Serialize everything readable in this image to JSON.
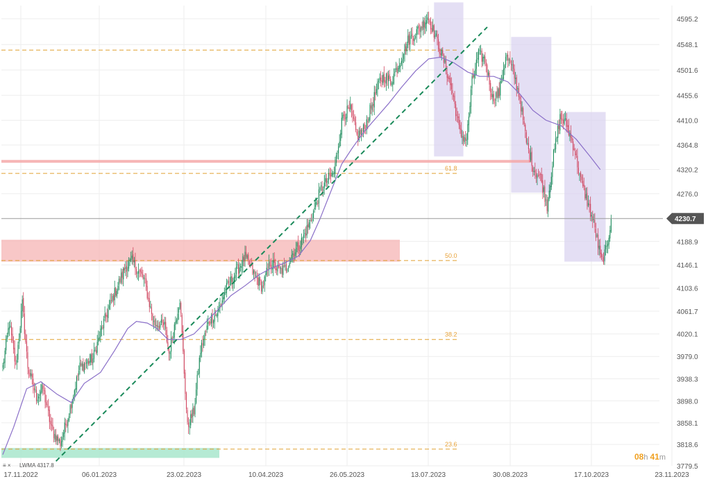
{
  "colors": {
    "up": "#1a8a5a",
    "down": "#d0455f",
    "grid": "#eeeeee",
    "fib": "#e0a030",
    "lwma": "#8a6fc8",
    "trend": "#1a8a5a",
    "resistance_zone": "#f5b4b4",
    "support_zone": "#a8e6cc",
    "highlight_box": "#d8d2f0",
    "red_hline": "#f5a8a8",
    "current_line": "#999999",
    "price_tag_bg": "#555555"
  },
  "chart_data": {
    "type": "candlestick",
    "title": "",
    "xlabel": "",
    "ylabel": "",
    "x_ticks": [
      "17.11.2022",
      "06.01.2023",
      "23.02.2023",
      "10.04.2023",
      "26.05.2023",
      "13.07.2023",
      "30.08.2023",
      "17.10.2023",
      "23.11.2023"
    ],
    "y_ticks": [
      "4595.2",
      "4548.1",
      "4501.6",
      "4455.6",
      "4410.0",
      "4364.8",
      "4320.2",
      "4276.0",
      "4188.9",
      "4146.1",
      "4103.6",
      "4061.7",
      "4020.1",
      "3979.0",
      "3938.3",
      "3898.0",
      "3858.1",
      "3818.6",
      "3779.5"
    ],
    "ylim": [
      3779.5,
      4620
    ],
    "current_price": "4230.7",
    "fib_levels": [
      {
        "label": "61.8",
        "value": 4313
      },
      {
        "label": "50.0",
        "value": 4154
      },
      {
        "label": "38.2",
        "value": 4010
      },
      {
        "label": "23.6",
        "value": 3810
      }
    ],
    "fib_top_line": 4538,
    "resistance_zone": {
      "low": 4152,
      "high": 4192
    },
    "support_zone": {
      "low": 3794,
      "high": 3812
    },
    "red_line": 4335,
    "lwma_label": "LWMA 4317.8",
    "countdown": {
      "hours": "08",
      "h_unit": "h",
      "minutes": "41",
      "m_unit": "m"
    },
    "legend": "none",
    "grid": true,
    "close_anchors": [
      [
        0,
        3960
      ],
      [
        6,
        4040
      ],
      [
        12,
        3960
      ],
      [
        18,
        4075
      ],
      [
        23,
        3960
      ],
      [
        31,
        3905
      ],
      [
        37,
        3920
      ],
      [
        45,
        3845
      ],
      [
        53,
        3820
      ],
      [
        60,
        3870
      ],
      [
        71,
        3960
      ],
      [
        83,
        3975
      ],
      [
        91,
        4030
      ],
      [
        101,
        4085
      ],
      [
        113,
        4143
      ],
      [
        119,
        4152
      ],
      [
        130,
        4120
      ],
      [
        139,
        4040
      ],
      [
        149,
        4035
      ],
      [
        153,
        3985
      ],
      [
        163,
        4085
      ],
      [
        170,
        3850
      ],
      [
        176,
        3880
      ],
      [
        182,
        3990
      ],
      [
        190,
        4045
      ],
      [
        198,
        4060
      ],
      [
        205,
        4100
      ],
      [
        214,
        4130
      ],
      [
        223,
        4160
      ],
      [
        231,
        4130
      ],
      [
        239,
        4105
      ],
      [
        246,
        4150
      ],
      [
        255,
        4135
      ],
      [
        261,
        4140
      ],
      [
        266,
        4165
      ],
      [
        274,
        4185
      ],
      [
        283,
        4225
      ],
      [
        293,
        4285
      ],
      [
        305,
        4315
      ],
      [
        313,
        4420
      ],
      [
        320,
        4430
      ],
      [
        326,
        4380
      ],
      [
        333,
        4395
      ],
      [
        340,
        4440
      ],
      [
        347,
        4482
      ],
      [
        351,
        4490
      ],
      [
        357,
        4480
      ],
      [
        364,
        4510
      ],
      [
        373,
        4555
      ],
      [
        385,
        4580
      ],
      [
        391,
        4600
      ],
      [
        397,
        4570
      ],
      [
        406,
        4518
      ],
      [
        414,
        4460
      ],
      [
        421,
        4385
      ],
      [
        427,
        4375
      ],
      [
        432,
        4480
      ],
      [
        438,
        4530
      ],
      [
        444,
        4520
      ],
      [
        451,
        4450
      ],
      [
        457,
        4460
      ],
      [
        463,
        4528
      ],
      [
        470,
        4498
      ],
      [
        476,
        4450
      ],
      [
        482,
        4370
      ],
      [
        489,
        4320
      ],
      [
        495,
        4305
      ],
      [
        501,
        4255
      ],
      [
        507,
        4345
      ],
      [
        513,
        4415
      ],
      [
        519,
        4402
      ],
      [
        526,
        4360
      ],
      [
        532,
        4300
      ],
      [
        538,
        4262
      ],
      [
        544,
        4222
      ],
      [
        551,
        4152
      ],
      [
        556,
        4175
      ],
      [
        560,
        4231
      ]
    ],
    "lwma_anchors": [
      [
        0,
        3800
      ],
      [
        10,
        3850
      ],
      [
        22,
        3920
      ],
      [
        35,
        3933
      ],
      [
        50,
        3910
      ],
      [
        63,
        3895
      ],
      [
        75,
        3930
      ],
      [
        90,
        3950
      ],
      [
        103,
        3990
      ],
      [
        115,
        4030
      ],
      [
        123,
        4043
      ],
      [
        133,
        4040
      ],
      [
        142,
        4030
      ],
      [
        152,
        4010
      ],
      [
        164,
        4010
      ],
      [
        176,
        4020
      ],
      [
        185,
        4038
      ],
      [
        197,
        4062
      ],
      [
        210,
        4090
      ],
      [
        223,
        4108
      ],
      [
        236,
        4128
      ],
      [
        247,
        4140
      ],
      [
        260,
        4150
      ],
      [
        272,
        4162
      ],
      [
        283,
        4190
      ],
      [
        292,
        4230
      ],
      [
        300,
        4270
      ],
      [
        312,
        4330
      ],
      [
        322,
        4360
      ],
      [
        333,
        4390
      ],
      [
        344,
        4415
      ],
      [
        355,
        4440
      ],
      [
        367,
        4470
      ],
      [
        380,
        4500
      ],
      [
        392,
        4522
      ],
      [
        403,
        4525
      ],
      [
        415,
        4515
      ],
      [
        428,
        4498
      ],
      [
        439,
        4490
      ],
      [
        452,
        4490
      ],
      [
        465,
        4480
      ],
      [
        476,
        4458
      ],
      [
        488,
        4428
      ],
      [
        500,
        4410
      ],
      [
        514,
        4400
      ],
      [
        528,
        4375
      ],
      [
        541,
        4343
      ],
      [
        550,
        4320
      ]
    ],
    "trendline": {
      "start": [
        49,
        3788
      ],
      "end": [
        446,
        4580
      ]
    },
    "highlight_boxes": [
      {
        "start": 397,
        "end": 424,
        "low": 4344,
        "high": 4625
      },
      {
        "start": 468,
        "end": 505,
        "low": 4278,
        "high": 4562
      },
      {
        "start": 517,
        "end": 555,
        "low": 4152,
        "high": 4425
      }
    ]
  }
}
